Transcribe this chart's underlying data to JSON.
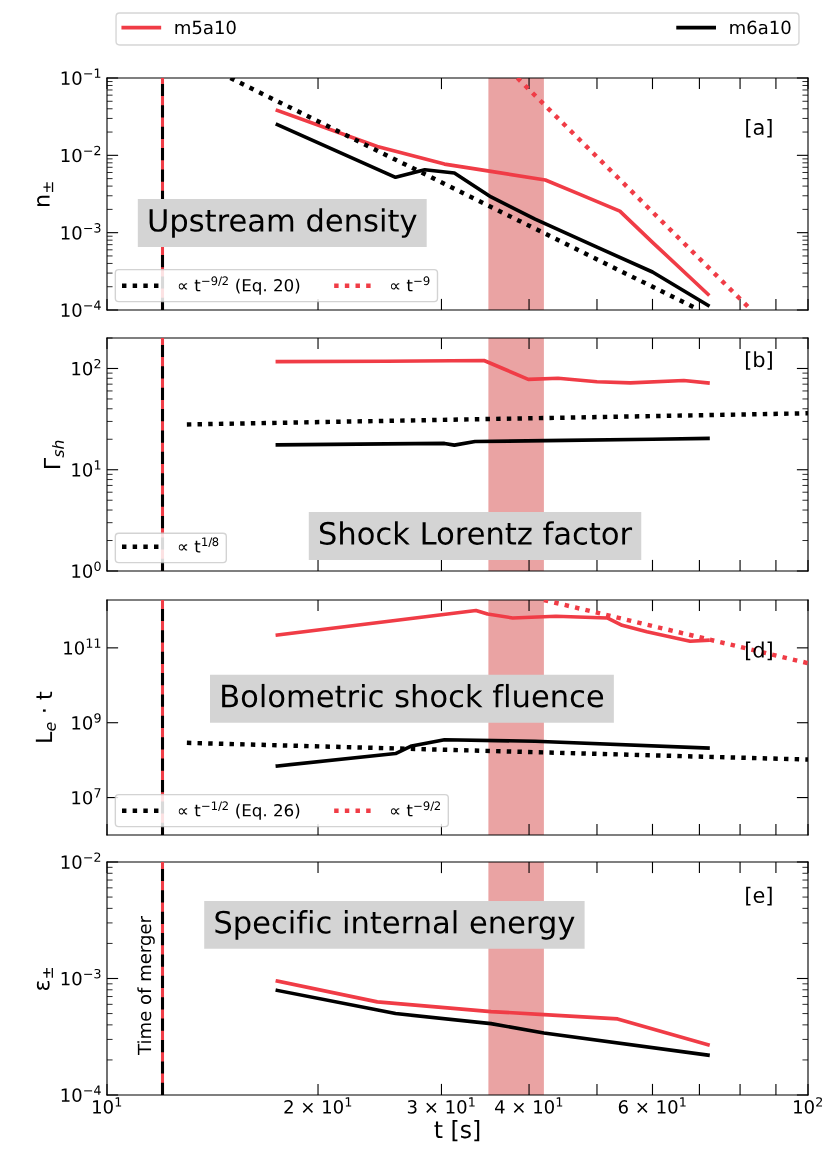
{
  "chart_data": [
    {
      "type": "line",
      "ylabel": "n$_{±}$",
      "log": "xy",
      "xlim": [
        10,
        100
      ],
      "ylim": [
        0.0001,
        0.1
      ],
      "xticks": [
        {
          "value": 10,
          "label": null
        },
        {
          "value": 20,
          "label": null
        },
        {
          "value": 30,
          "label": null
        },
        {
          "value": 40,
          "label": null
        },
        {
          "value": 50,
          "label": null
        },
        {
          "value": 60,
          "label": null
        },
        {
          "value": 70,
          "label": null
        },
        {
          "value": 80,
          "label": null
        },
        {
          "value": 90,
          "label": null
        },
        {
          "value": 100,
          "label": null
        }
      ],
      "yticks": [
        {
          "value": 0.0001,
          "label": "10$^{−4}$"
        },
        {
          "value": 0.001,
          "label": "10$^{−3}$"
        },
        {
          "value": 0.01,
          "label": "10$^{−2}$"
        },
        {
          "value": 0.1,
          "label": "10$^{−1}$"
        }
      ],
      "tick_labels": "y",
      "legend": "top",
      "series": [
        {
          "name": "m5a10",
          "color": "#f03c46",
          "line_style": "solid",
          "x": [
            17.5,
            24.3,
            30.3,
            35.3,
            42.2,
            47,
            53.9,
            60,
            72
          ],
          "values": [
            0.038,
            0.013,
            0.0077,
            0.0062,
            0.0048,
            0.0032,
            0.0019,
            0.00075,
            0.00016
          ]
        },
        {
          "name": "m6a10",
          "color": "#000000",
          "line_style": "solid",
          "x": [
            17.5,
            25.8,
            28.4,
            31.3,
            35.3,
            40.8,
            50,
            60,
            72
          ],
          "values": [
            0.025,
            0.0052,
            0.0065,
            0.0059,
            0.0029,
            0.0015,
            0.00065,
            0.00031,
            0.000115
          ]
        },
        {
          "name": "∝ t$^{−9/2}$ (Eq. 20)",
          "color": "#000000",
          "line_style": "dotted",
          "x": [
            15,
            70
          ],
          "values": [
            0.1,
            0.0001
          ]
        },
        {
          "name": "∝ t$^{−9}$",
          "color": "#f03c46",
          "line_style": "dotted",
          "x": [
            38.5,
            83
          ],
          "values": [
            0.1,
            0.0001
          ]
        }
      ],
      "ref_lines": [
        {
          "axis": "x",
          "value": 12,
          "color": "#f03c46",
          "line_style": "solid"
        },
        {
          "axis": "x",
          "value": 12,
          "color": "#000000",
          "line_style": "dashed"
        }
      ],
      "bands": [
        {
          "axis": "x",
          "from": 35,
          "to": 42,
          "color": "#eaa3a3"
        }
      ],
      "annotations": [
        "[a]",
        "Upstream density"
      ]
    },
    {
      "type": "line",
      "ylabel": "Γ$_{sh}$",
      "log": "xy",
      "xlim": [
        10,
        100
      ],
      "ylim": [
        1,
        200
      ],
      "xticks": [
        {
          "value": 10,
          "label": null
        },
        {
          "value": 20,
          "label": null
        },
        {
          "value": 30,
          "label": null
        },
        {
          "value": 40,
          "label": null
        },
        {
          "value": 50,
          "label": null
        },
        {
          "value": 60,
          "label": null
        },
        {
          "value": 70,
          "label": null
        },
        {
          "value": 80,
          "label": null
        },
        {
          "value": 90,
          "label": null
        },
        {
          "value": 100,
          "label": null
        }
      ],
      "yticks": [
        {
          "value": 1,
          "label": "10$^{0}$"
        },
        {
          "value": 10,
          "label": "10$^{1}$"
        },
        {
          "value": 100,
          "label": "10$^{2}$"
        }
      ],
      "tick_labels": "y",
      "legend": "bottom left",
      "series": [
        {
          "color": "#f03c46",
          "line_style": "solid",
          "x": [
            17.5,
            25,
            34.5,
            36.7,
            39.9,
            44,
            50,
            55.8,
            66.5,
            72
          ],
          "values": [
            117,
            118,
            120,
            100,
            78,
            80,
            74,
            72,
            76,
            72
          ]
        },
        {
          "color": "#000000",
          "line_style": "solid",
          "x": [
            17.5,
            25,
            30.3,
            31.3,
            33.5,
            45,
            60,
            72
          ],
          "values": [
            17.6,
            18,
            18.2,
            17.5,
            19,
            19.5,
            20,
            20.4
          ]
        },
        {
          "name": "∝ t$^{1/8}$",
          "color": "#000000",
          "line_style": "dotted",
          "x": [
            13,
            100
          ],
          "values": [
            28,
            36.1
          ]
        }
      ],
      "ref_lines": [
        {
          "axis": "x",
          "value": 12,
          "color": "#f03c46",
          "line_style": "solid"
        },
        {
          "axis": "x",
          "value": 12,
          "color": "#000000",
          "line_style": "dashed"
        }
      ],
      "bands": [
        {
          "axis": "x",
          "from": 35,
          "to": 42,
          "color": "#eaa3a3"
        }
      ],
      "annotations": [
        "[b]",
        "Shock Lorentz factor"
      ]
    },
    {
      "type": "line",
      "ylabel": "L$_{e}$ · t",
      "log": "xy",
      "xlim": [
        10,
        100
      ],
      "ylim": [
        1000000,
        1900000000000
      ],
      "xticks": [
        {
          "value": 10,
          "label": null
        },
        {
          "value": 20,
          "label": null
        },
        {
          "value": 30,
          "label": null
        },
        {
          "value": 40,
          "label": null
        },
        {
          "value": 50,
          "label": null
        },
        {
          "value": 60,
          "label": null
        },
        {
          "value": 70,
          "label": null
        },
        {
          "value": 80,
          "label": null
        },
        {
          "value": 90,
          "label": null
        },
        {
          "value": 100,
          "label": null
        }
      ],
      "yticks": [
        {
          "value": 10000000,
          "label": "10$^{7}$"
        },
        {
          "value": 1000000000,
          "label": "10$^{9}$"
        },
        {
          "value": 100000000000,
          "label": "10$^{11}$"
        }
      ],
      "tick_labels": "y",
      "legend": "bottom left",
      "series": [
        {
          "color": "#f03c46",
          "line_style": "solid",
          "x": [
            17.5,
            33.6,
            34.9,
            37.9,
            43.7,
            51.7,
            54.3,
            58.9,
            67.9,
            72
          ],
          "values": [
            220000000000,
            1000000000000,
            800000000000,
            630000000000,
            700000000000,
            630000000000,
            400000000000,
            270000000000,
            150000000000,
            160000000000
          ]
        },
        {
          "color": "#000000",
          "line_style": "solid",
          "x": [
            17.5,
            25.8,
            27.2,
            30.3,
            40.8,
            72
          ],
          "values": [
            70000000,
            150000000,
            240000000,
            350000000,
            320000000,
            210000000
          ]
        },
        {
          "name": "∝ t$^{−1/2}$ (Eq. 26)",
          "color": "#000000",
          "line_style": "dotted",
          "x": [
            13,
            100
          ],
          "values": [
            290000000,
            104000000
          ]
        },
        {
          "name": "∝ t$^{−9/2}$",
          "color": "#f03c46",
          "line_style": "dotted",
          "x": [
            42,
            100
          ],
          "values": [
            1900000000000,
            39000000000
          ]
        }
      ],
      "ref_lines": [
        {
          "axis": "x",
          "value": 12,
          "color": "#f03c46",
          "line_style": "solid"
        },
        {
          "axis": "x",
          "value": 12,
          "color": "#000000",
          "line_style": "dashed"
        }
      ],
      "bands": [
        {
          "axis": "x",
          "from": 35,
          "to": 42,
          "color": "#eaa3a3"
        }
      ],
      "annotations": [
        "[d]",
        "Bolometric shock fluence"
      ]
    },
    {
      "type": "line",
      "ylabel": "ε$_{±}$",
      "xlabel": "t [s]",
      "log": "xy",
      "xlim": [
        10,
        100
      ],
      "ylim": [
        0.0001,
        0.01
      ],
      "xticks": [
        {
          "value": 10,
          "label": "10$^{1}$"
        },
        {
          "value": 20,
          "label": "2 × 10$^{1}$"
        },
        {
          "value": 30,
          "label": "3 × 10$^{1}$"
        },
        {
          "value": 40,
          "label": "4 × 10$^{1}$"
        },
        {
          "value": 50,
          "label": null
        },
        {
          "value": 60,
          "label": "6 × 10$^{1}$"
        },
        {
          "value": 70,
          "label": null
        },
        {
          "value": 80,
          "label": null
        },
        {
          "value": 90,
          "label": null
        },
        {
          "value": 100,
          "label": "10$^{2}$"
        }
      ],
      "yticks": [
        {
          "value": 0.0001,
          "label": "10$^{−4}$"
        },
        {
          "value": 0.001,
          "label": "10$^{−3}$"
        },
        {
          "value": 0.01,
          "label": "10$^{−2}$"
        }
      ],
      "series": [
        {
          "color": "#f03c46",
          "line_style": "solid",
          "x": [
            17.5,
            24.3,
            35.3,
            42,
            53.5,
            72
          ],
          "values": [
            0.00095,
            0.00063,
            0.00052,
            0.00049,
            0.00045,
            0.00027
          ]
        },
        {
          "color": "#000000",
          "line_style": "solid",
          "x": [
            17.5,
            25.8,
            35.3,
            42,
            72
          ],
          "values": [
            0.00079,
            0.0005,
            0.00041,
            0.00034,
            0.00022
          ]
        }
      ],
      "ref_lines": [
        {
          "axis": "x",
          "value": 12,
          "color": "#f03c46",
          "line_style": "solid"
        },
        {
          "axis": "x",
          "value": 12,
          "color": "#000000",
          "line_style": "dashed",
          "label": "Time of merger"
        }
      ],
      "bands": [
        {
          "axis": "x",
          "from": 35,
          "to": 42,
          "color": "#eaa3a3"
        }
      ],
      "annotations": [
        "[e]",
        "Specific internal energy"
      ]
    }
  ]
}
